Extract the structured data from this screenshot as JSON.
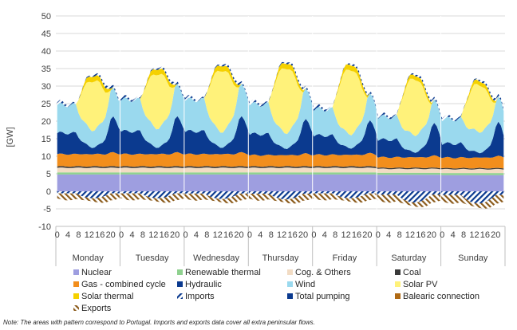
{
  "chart_data": {
    "type": "area",
    "ylabel": "[GW]",
    "ylim": [
      -10,
      50
    ],
    "yticks": [
      -10,
      -5,
      0,
      5,
      10,
      15,
      20,
      25,
      30,
      35,
      40,
      45,
      50
    ],
    "hour_labels": [
      "0",
      "4",
      "8",
      "12",
      "16",
      "20"
    ],
    "days": [
      "Monday",
      "Tuesday",
      "Wednesday",
      "Thursday",
      "Friday",
      "Saturday",
      "Sunday"
    ],
    "hours_per_day": 24,
    "colors": {
      "Nuclear": "#9e9ee0",
      "Renewable thermal": "#8fd18f",
      "Cog. & Others": "#f2dcc4",
      "Coal": "#3a3a3a",
      "Gas - combined cycle": "#f28e1c",
      "Hydraulic": "#0b3a8f",
      "Wind": "#9ad9ee",
      "Solar PV": "#fff27a",
      "Solar thermal": "#f5d100",
      "Imports": "#0b3a8f",
      "Total pumping": "#0b3a8f",
      "Balearic connection": "#b06a14",
      "Exports": "#8b5a1a"
    },
    "legend": [
      "Nuclear",
      "Renewable thermal",
      "Cog. & Others",
      "Coal",
      "Gas - combined cycle",
      "Hydraulic",
      "Wind",
      "Solar PV",
      "Solar thermal",
      "Imports",
      "Total pumping",
      "Balearic connection",
      "Exports"
    ],
    "daily_profile": {
      "Nuclear": [
        4.8,
        4.8,
        4.8,
        4.8,
        4.8,
        4.7,
        4.6
      ],
      "Renewable thermal": [
        0.6,
        0.6,
        0.6,
        0.6,
        0.6,
        0.6,
        0.6
      ],
      "Cog. & Others": [
        1.3,
        1.3,
        1.3,
        1.3,
        1.3,
        1.1,
        1.1
      ],
      "Coal": [
        0.4,
        0.4,
        0.4,
        0.4,
        0.4,
        0.3,
        0.3
      ],
      "Gas - combined cycle": [
        3.5,
        3.5,
        3.5,
        3.2,
        3.3,
        3.0,
        3.0
      ],
      "Hydraulic": {
        "night": [
          6.0,
          6.5,
          6.5,
          6.0,
          5.5,
          5.0,
          4.0
        ],
        "day_min": [
          2.0,
          2.0,
          2.0,
          2.0,
          2.0,
          1.5,
          1.5
        ],
        "evening_peak": [
          10.0,
          10.0,
          10.0,
          9.5,
          9.0,
          9.0,
          9.5
        ]
      },
      "Wind": {
        "night": [
          8.0,
          9.0,
          9.0,
          8.5,
          7.5,
          6.5,
          7.0
        ],
        "day": [
          5.0,
          5.5,
          4.5,
          4.5,
          4.0,
          5.0,
          6.0
        ]
      },
      "Solar PV": [
        14.0,
        15.5,
        17.5,
        18.5,
        18.5,
        16.0,
        13.5
      ],
      "Solar thermal": [
        1.5,
        1.5,
        1.5,
        1.5,
        1.5,
        1.2,
        1.2
      ],
      "Imports": [
        0.8,
        0.8,
        0.8,
        0.8,
        0.8,
        0.8,
        0.8
      ],
      "Total pumping": [
        -2.0,
        -2.0,
        -2.2,
        -2.3,
        -2.0,
        -3.2,
        -3.5
      ],
      "Exports": [
        -2.0,
        -2.0,
        -2.0,
        -2.0,
        -2.0,
        -2.3,
        -2.5
      ]
    }
  },
  "note": "Note: The areas with pattern correspond to Portugal. Imports and exports data cover all extra peninsular flows."
}
